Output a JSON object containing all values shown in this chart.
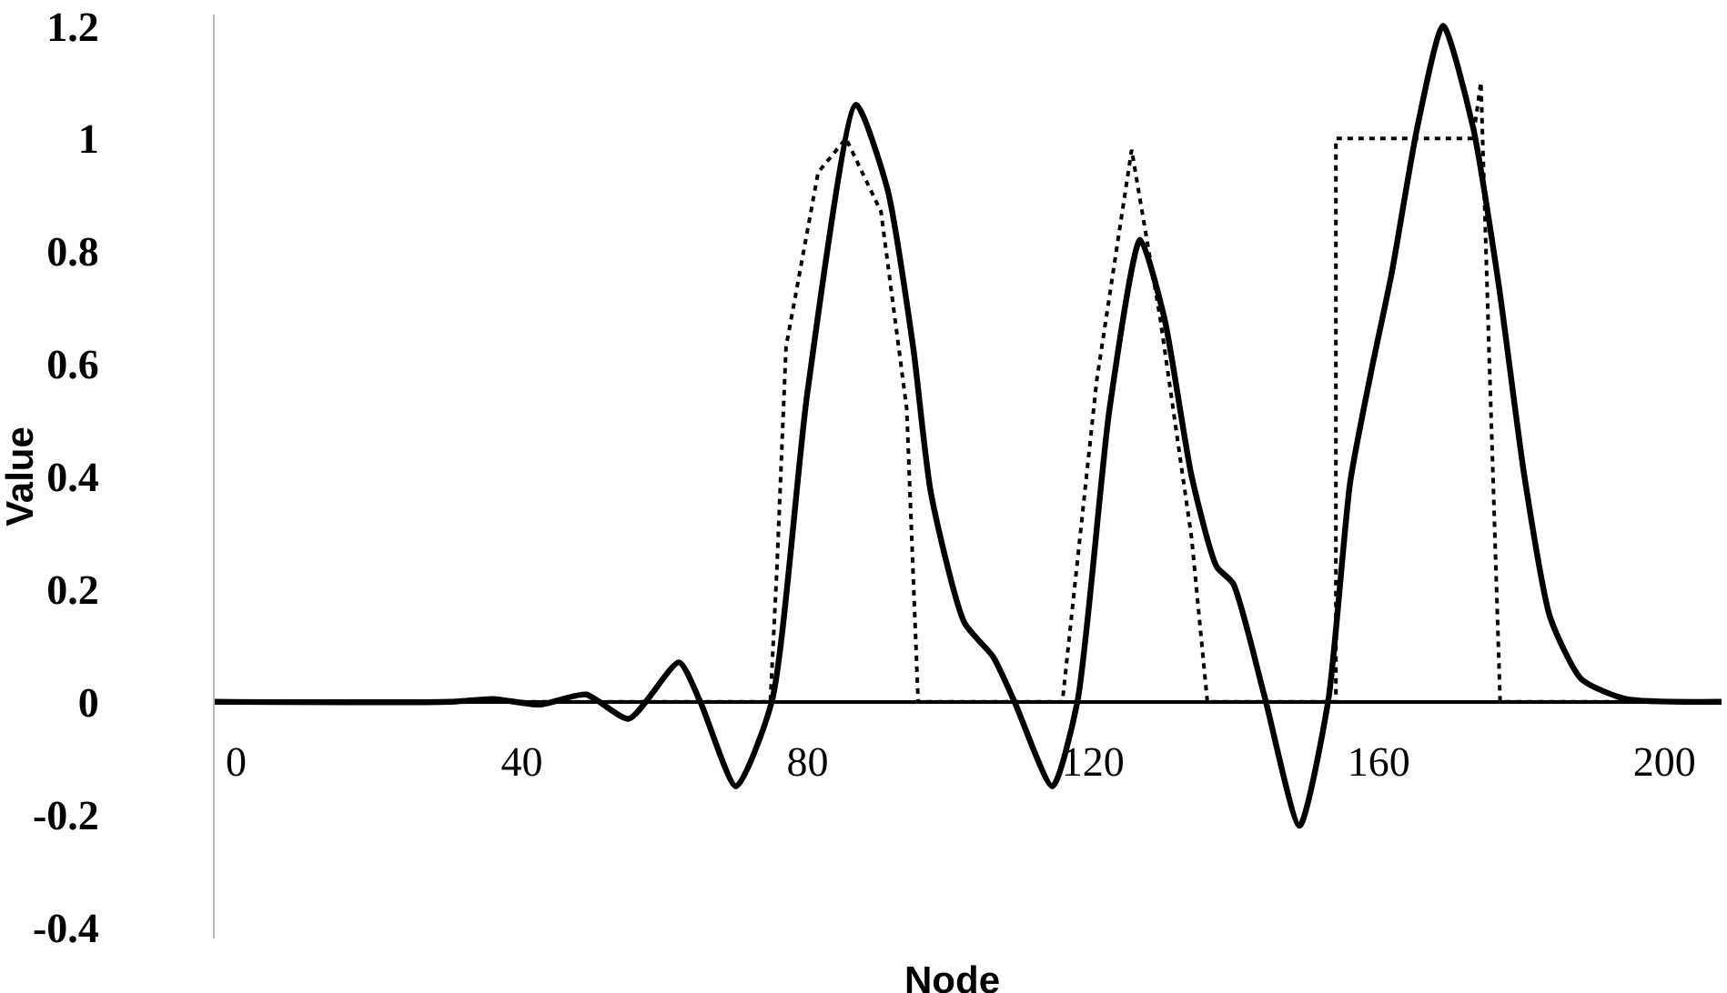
{
  "chart_data": {
    "type": "line",
    "xlabel": "Node",
    "ylabel": "Value",
    "xlim": [
      -3,
      208
    ],
    "ylim": [
      -0.42,
      1.22
    ],
    "xticks": [
      0,
      40,
      80,
      120,
      160,
      200
    ],
    "yticks": [
      -0.4,
      -0.2,
      0,
      0.2,
      0.4,
      0.6,
      0.8,
      1,
      1.2
    ],
    "grid": false,
    "marker": "none",
    "series": [
      {
        "color": "#000000",
        "line_style": "solid",
        "x": [
          -3,
          30,
          36,
          42.5,
          49,
          55,
          62,
          65,
          70,
          75,
          80,
          86.8,
          91.2,
          94.8,
          97.3,
          102,
          106,
          109,
          114.3,
          117.8,
          122.3,
          126.6,
          130,
          133.8,
          137.3,
          139.6,
          144,
          148.9,
          152.9,
          156,
          159,
          161.8,
          165.4,
          169,
          173.2,
          176.8,
          180.4,
          184,
          188.4,
          194.6,
          208
        ],
        "values": [
          0,
          0,
          0.005,
          -0.005,
          0.013,
          -0.03,
          0.07,
          0,
          -0.15,
          0,
          0.55,
          1.06,
          0.91,
          0.63,
          0.37,
          0.14,
          0.08,
          0,
          -0.15,
          0,
          0.52,
          0.82,
          0.68,
          0.4,
          0.24,
          0.21,
          0.01,
          -0.22,
          0,
          0.39,
          0.59,
          0.76,
          1.02,
          1.2,
          1.02,
          0.74,
          0.4,
          0.15,
          0.04,
          0.005,
          0
        ]
      },
      {
        "color": "#000000",
        "line_style": "dotted",
        "x": [
          -3,
          74.8,
          75.7,
          77,
          81.5,
          85.4,
          90.3,
          93.9,
          95.5,
          115.7,
          120.5,
          125.4,
          129.4,
          133.8,
          136,
          154,
          154,
          173.2,
          174.3,
          175.5,
          177,
          208
        ],
        "values": [
          0,
          0,
          0.23,
          0.63,
          0.94,
          1.0,
          0.87,
          0.52,
          0,
          0,
          0.57,
          0.98,
          0.68,
          0.29,
          0,
          0,
          1.0,
          1.0,
          1.1,
          0.6,
          0,
          0
        ]
      }
    ]
  }
}
